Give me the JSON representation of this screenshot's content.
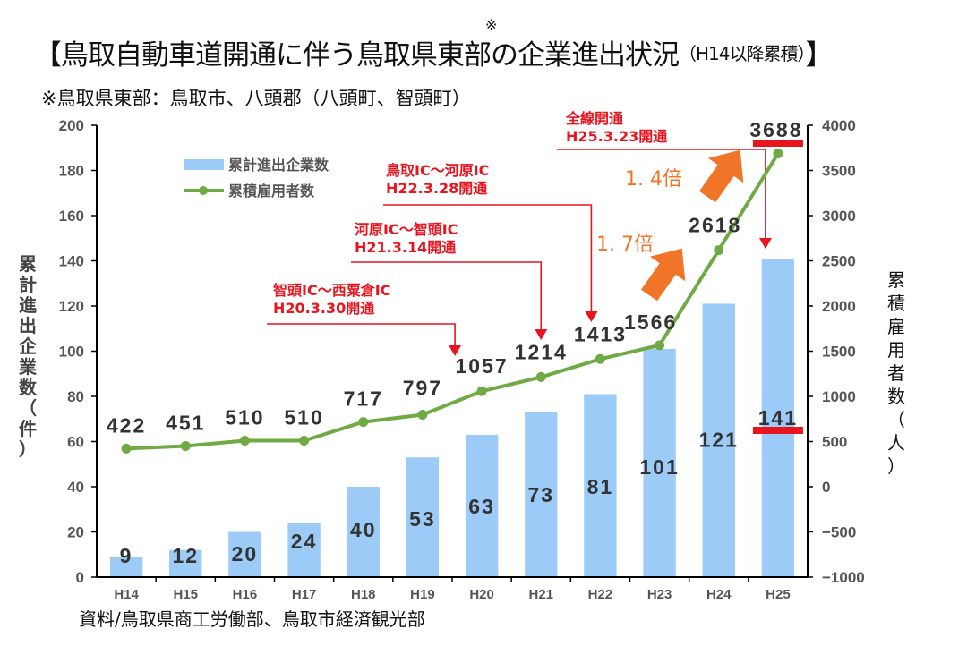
{
  "header": {
    "title": "【鳥取自動車道開通に伴う鳥取県東部の企業進出状況",
    "title_suffix": "（H14以降累積）",
    "title_close": "】",
    "title_mark": "※",
    "note": "※鳥取県東部：鳥取市、八頭郡（八頭町、智頭町）"
  },
  "source": "資料/鳥取県商工労働部、鳥取市経済観光部",
  "chart_data": {
    "type": "bar+line",
    "title": "鳥取自動車道開通に伴う鳥取県東部の企業進出状況（H14以降累積）",
    "categories": [
      "H14",
      "H15",
      "H16",
      "H17",
      "H18",
      "H19",
      "H20",
      "H21",
      "H22",
      "H23",
      "H24",
      "H25"
    ],
    "series": [
      {
        "name": "累計進出企業数",
        "type": "bar",
        "axis": "left",
        "color": "#9dcbf7",
        "values": [
          9,
          12,
          20,
          24,
          40,
          53,
          63,
          73,
          81,
          101,
          121,
          141
        ]
      },
      {
        "name": "累積雇用者数",
        "type": "line",
        "axis": "right",
        "color": "#6faa45",
        "values": [
          422,
          451,
          510,
          510,
          717,
          797,
          1057,
          1214,
          1413,
          1566,
          2618,
          3688
        ]
      }
    ],
    "ylabel_left": "累計進出企業数（件）",
    "ylabel_right": "累積雇用者数（人）",
    "ylim_left": [
      0,
      200
    ],
    "yticks_left": [
      "0",
      "20",
      "40",
      "60",
      "80",
      "100",
      "120",
      "140",
      "160",
      "180",
      "200"
    ],
    "ylim_right": [
      -1000,
      4000
    ],
    "yticks_right": [
      "-1000",
      "-500",
      "0",
      "500",
      "1000",
      "1500",
      "2000",
      "2500",
      "3000",
      "3500",
      "4000"
    ],
    "legend": {
      "position": "top-left",
      "entries": [
        "累計進出企業数",
        "累積雇用者数"
      ]
    },
    "grid": false,
    "annotations": [
      {
        "line1": "智頭IC～西粟倉IC",
        "line2": "H20.3.30開通",
        "category": "H20"
      },
      {
        "line1": "河原IC～智頭IC",
        "line2": "H21.3.14開通",
        "category": "H21"
      },
      {
        "line1": "鳥取IC～河原IC",
        "line2": "H22.3.28開通",
        "category": "H22"
      },
      {
        "line1": "全線開通",
        "line2": "H25.3.23開通",
        "category": "H25"
      }
    ],
    "multipliers": [
      {
        "label": "1. 7倍",
        "from": "H23",
        "to": "H24"
      },
      {
        "label": "1. 4倍",
        "from": "H24",
        "to": "H25"
      }
    ],
    "highlighted": [
      "141",
      "3688"
    ]
  }
}
